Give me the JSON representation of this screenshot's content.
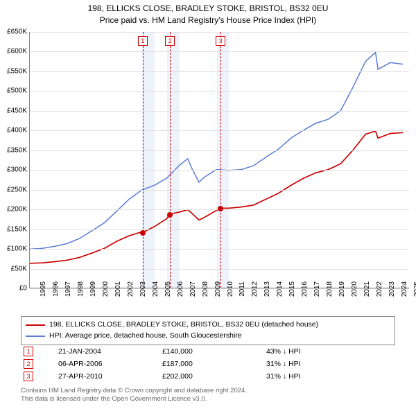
{
  "title": {
    "line1": "198, ELLICKS CLOSE, BRADLEY STOKE, BRISTOL, BS32 0EU",
    "line2": "Price paid vs. HM Land Registry's House Price Index (HPI)"
  },
  "chart": {
    "type": "line",
    "ylim": [
      0,
      650000
    ],
    "ytick_step": 50000,
    "yticks": [
      0,
      50000,
      100000,
      150000,
      200000,
      250000,
      300000,
      350000,
      400000,
      450000,
      500000,
      550000,
      600000,
      650000
    ],
    "ytick_labels": [
      "£0",
      "£50K",
      "£100K",
      "£150K",
      "£200K",
      "£250K",
      "£300K",
      "£350K",
      "£400K",
      "£450K",
      "£500K",
      "£550K",
      "£600K",
      "£650K"
    ],
    "xlim": [
      1995,
      2025.5
    ],
    "xticks": [
      1995,
      1996,
      1997,
      1998,
      1999,
      2000,
      2001,
      2002,
      2003,
      2004,
      2005,
      2006,
      2007,
      2008,
      2009,
      2010,
      2011,
      2012,
      2013,
      2014,
      2015,
      2016,
      2017,
      2018,
      2019,
      2020,
      2021,
      2022,
      2023,
      2024,
      2025
    ],
    "grid_color": "#e0e0e0",
    "background_color": "#ffffff",
    "bands": [
      {
        "from": 2004,
        "to": 2005,
        "color": "#eef2fb"
      },
      {
        "from": 2006,
        "to": 2007,
        "color": "#eef2fb"
      },
      {
        "from": 2010,
        "to": 2011,
        "color": "#eef2fb"
      }
    ],
    "event_lines": [
      {
        "x": 2004.06,
        "label": "1",
        "color": "#cc0000"
      },
      {
        "x": 2006.26,
        "label": "2",
        "color": "#cc0000"
      },
      {
        "x": 2010.32,
        "label": "3",
        "color": "#cc0000"
      }
    ],
    "series": [
      {
        "id": "price_paid",
        "label": "198, ELLICKS CLOSE, BRADLEY STOKE, BRISTOL, BS32 0EU (detached house)",
        "color": "#cc0000",
        "line_width": 1.7,
        "data": [
          [
            1995,
            62000
          ],
          [
            1996,
            63000
          ],
          [
            1997,
            66000
          ],
          [
            1998,
            70000
          ],
          [
            1999,
            77000
          ],
          [
            2000,
            88000
          ],
          [
            2001,
            100000
          ],
          [
            2002,
            118000
          ],
          [
            2003,
            132000
          ],
          [
            2004,
            142000
          ],
          [
            2004.06,
            140000
          ],
          [
            2005,
            155000
          ],
          [
            2006,
            175000
          ],
          [
            2006.26,
            187000
          ],
          [
            2007,
            192000
          ],
          [
            2007.7,
            198000
          ],
          [
            2008,
            190000
          ],
          [
            2008.6,
            172000
          ],
          [
            2009,
            178000
          ],
          [
            2010,
            196000
          ],
          [
            2010.32,
            202000
          ],
          [
            2011,
            202000
          ],
          [
            2012,
            205000
          ],
          [
            2013,
            210000
          ],
          [
            2014,
            225000
          ],
          [
            2015,
            240000
          ],
          [
            2016,
            260000
          ],
          [
            2017,
            278000
          ],
          [
            2018,
            292000
          ],
          [
            2019,
            300000
          ],
          [
            2020,
            315000
          ],
          [
            2021,
            350000
          ],
          [
            2022,
            390000
          ],
          [
            2022.8,
            398000
          ],
          [
            2023,
            380000
          ],
          [
            2024,
            392000
          ],
          [
            2025,
            394000
          ]
        ],
        "points": [
          {
            "x": 2004.06,
            "y": 140000
          },
          {
            "x": 2006.26,
            "y": 187000
          },
          {
            "x": 2010.32,
            "y": 202000
          }
        ]
      },
      {
        "id": "hpi",
        "label": "HPI: Average price, detached house, South Gloucestershire",
        "color": "#5b7bd5",
        "line_width": 1.5,
        "data": [
          [
            1995,
            98000
          ],
          [
            1996,
            100000
          ],
          [
            1997,
            105000
          ],
          [
            1998,
            112000
          ],
          [
            1999,
            125000
          ],
          [
            2000,
            145000
          ],
          [
            2001,
            165000
          ],
          [
            2002,
            195000
          ],
          [
            2003,
            225000
          ],
          [
            2004,
            248000
          ],
          [
            2005,
            260000
          ],
          [
            2006,
            278000
          ],
          [
            2007,
            310000
          ],
          [
            2007.7,
            328000
          ],
          [
            2008,
            305000
          ],
          [
            2008.6,
            268000
          ],
          [
            2009,
            280000
          ],
          [
            2010,
            300000
          ],
          [
            2011,
            298000
          ],
          [
            2012,
            300000
          ],
          [
            2013,
            310000
          ],
          [
            2014,
            332000
          ],
          [
            2015,
            352000
          ],
          [
            2016,
            380000
          ],
          [
            2017,
            400000
          ],
          [
            2018,
            418000
          ],
          [
            2019,
            428000
          ],
          [
            2020,
            450000
          ],
          [
            2021,
            510000
          ],
          [
            2022,
            575000
          ],
          [
            2022.8,
            598000
          ],
          [
            2023,
            555000
          ],
          [
            2024,
            572000
          ],
          [
            2025,
            568000
          ]
        ]
      }
    ]
  },
  "legend": {
    "rows": [
      {
        "color": "#cc0000",
        "label": "198, ELLICKS CLOSE, BRADLEY STOKE, BRISTOL, BS32 0EU (detached house)"
      },
      {
        "color": "#5b7bd5",
        "label": "HPI: Average price, detached house, South Gloucestershire"
      }
    ]
  },
  "events_table": {
    "rows": [
      {
        "marker": "1",
        "color": "#cc0000",
        "date": "21-JAN-2004",
        "price": "£140,000",
        "diff": "43% ↓ HPI"
      },
      {
        "marker": "2",
        "color": "#cc0000",
        "date": "06-APR-2006",
        "price": "£187,000",
        "diff": "31% ↓ HPI"
      },
      {
        "marker": "3",
        "color": "#cc0000",
        "date": "27-APR-2010",
        "price": "£202,000",
        "diff": "31% ↓ HPI"
      }
    ]
  },
  "footer": {
    "line1": "Contains HM Land Registry data © Crown copyright and database right 2024.",
    "line2": "This data is licensed under the Open Government Licence v3.0."
  }
}
